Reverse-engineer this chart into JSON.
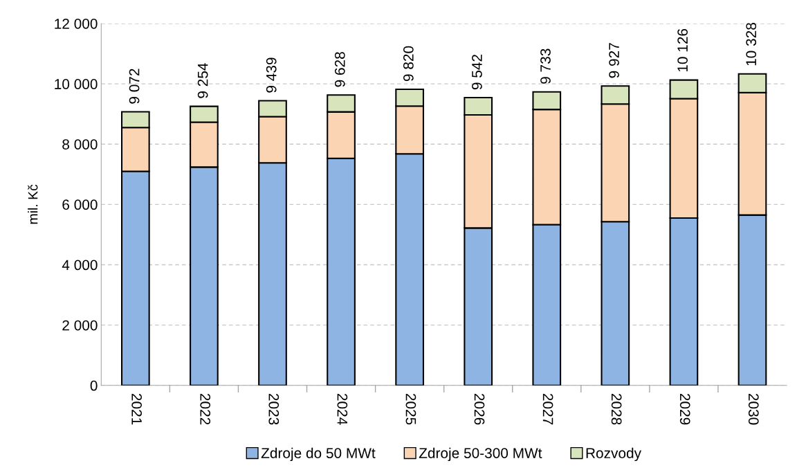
{
  "chart_data": {
    "type": "bar",
    "stacked": true,
    "ylabel": "mil. Kč",
    "categories": [
      "2021",
      "2022",
      "2023",
      "2024",
      "2025",
      "2026",
      "2027",
      "2028",
      "2029",
      "2030"
    ],
    "series": [
      {
        "name": "Zdroje do 50 MWt",
        "color": "#8eb4e3",
        "values": [
          7100,
          7240,
          7380,
          7530,
          7680,
          5220,
          5330,
          5430,
          5550,
          5650
        ]
      },
      {
        "name": "Zdroje 50-300 MWt",
        "color": "#fbd4b4",
        "values": [
          1450,
          1490,
          1530,
          1540,
          1580,
          3750,
          3820,
          3900,
          3960,
          4060
        ]
      },
      {
        "name": "Rozvody",
        "color": "#d7e4bc",
        "values": [
          522,
          524,
          529,
          558,
          560,
          572,
          583,
          597,
          616,
          618
        ]
      }
    ],
    "totals": [
      "9 072",
      "9 254",
      "9 439",
      "9 628",
      "9 820",
      "9 542",
      "9 733",
      "9 927",
      "10 126",
      "10 328"
    ],
    "ylim": [
      0,
      12000
    ],
    "yticks": [
      {
        "value": 0,
        "label": "0"
      },
      {
        "value": 2000,
        "label": "2 000"
      },
      {
        "value": 4000,
        "label": "4 000"
      },
      {
        "value": 6000,
        "label": "6 000"
      },
      {
        "value": 8000,
        "label": "8 000"
      },
      {
        "value": 10000,
        "label": "10 000"
      },
      {
        "value": 12000,
        "label": "12 000"
      }
    ],
    "grid": "y",
    "legend": "bottom"
  }
}
